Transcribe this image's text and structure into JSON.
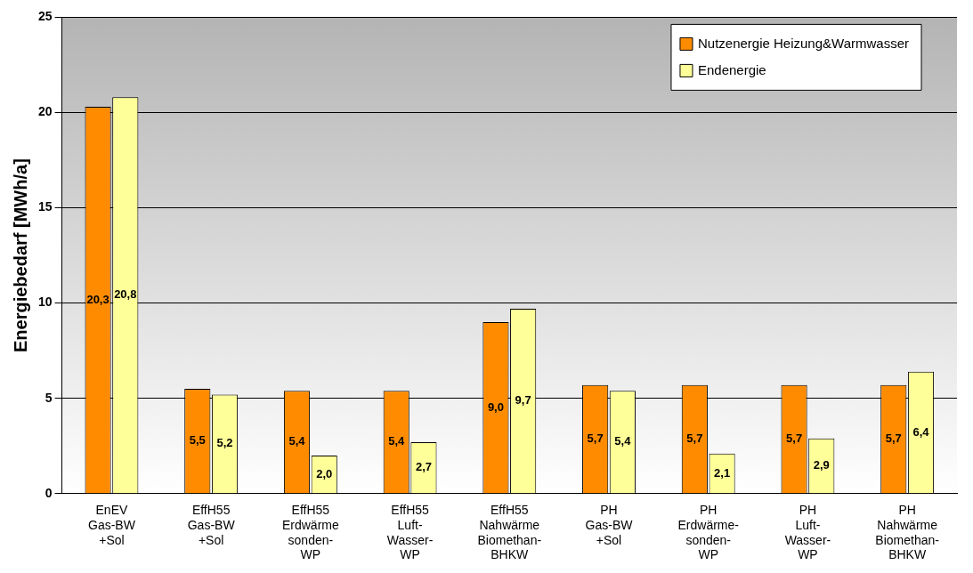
{
  "chart_data": {
    "type": "bar",
    "ylabel": "Energiebedarf [MWh/a]",
    "categories": [
      "EnEV\nGas-BW\n+Sol",
      "EffH55\nGas-BW\n+Sol",
      "EffH55\nErdwärme\nsonden-\nWP",
      "EffH55\nLuft-\nWasser-\nWP",
      "EffH55\nNahwärme\nBiomethan-\nBHKW",
      "PH\nGas-BW\n+Sol",
      "PH\nErdwärme-\nsonden-\nWP",
      "PH\nLuft-\nWasser-\nWP",
      "PH\nNahwärme\nBiomethan-\nBHKW"
    ],
    "series": [
      {
        "name": "Nutzenergie Heizung&Warmwasser",
        "color": "#ff8c00",
        "values": [
          20.3,
          5.5,
          5.4,
          5.4,
          9.0,
          5.7,
          5.7,
          5.7,
          5.7
        ],
        "value_labels": [
          "20,3",
          "5,5",
          "5,4",
          "5,4",
          "9,0",
          "5,7",
          "5,7",
          "5,7",
          "5,7"
        ]
      },
      {
        "name": "Endenergie",
        "color": "#ffff99",
        "values": [
          20.8,
          5.2,
          2.0,
          2.7,
          9.7,
          5.4,
          2.1,
          2.9,
          6.4
        ],
        "value_labels": [
          "20,8",
          "5,2",
          "2,0",
          "2,7",
          "9,7",
          "5,4",
          "2,1",
          "2,9",
          "6,4"
        ]
      }
    ],
    "ylim": [
      0,
      25
    ],
    "yticks": [
      0,
      5,
      10,
      15,
      20,
      25
    ],
    "grid": "y",
    "legend": "top right"
  }
}
